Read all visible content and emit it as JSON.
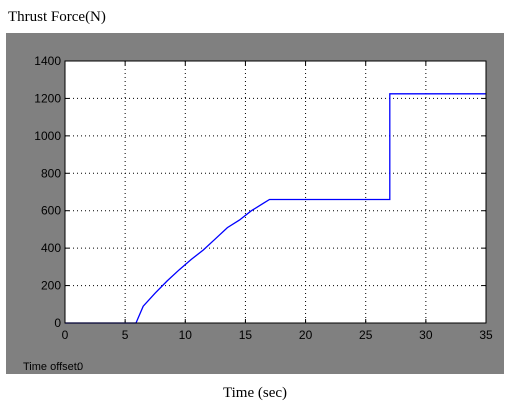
{
  "window": {
    "title": "Thrust Force(N)",
    "time_offset_label": "Time offset:",
    "time_offset_value": "0"
  },
  "colors": {
    "panel_background": "#808080",
    "axes_background": "#ffffff",
    "line": "#0000ff",
    "grid": "#000000"
  },
  "chart_data": {
    "type": "line",
    "title": "Thrust Force(N)",
    "xlabel": "Time (sec)",
    "ylabel": "",
    "xlim": [
      0,
      35
    ],
    "ylim": [
      0,
      1400
    ],
    "xticks": [
      0,
      5,
      10,
      15,
      20,
      25,
      30,
      35
    ],
    "yticks": [
      0,
      200,
      400,
      600,
      800,
      1000,
      1200,
      1400
    ],
    "grid": true,
    "grid_style": "dotted",
    "series": [
      {
        "x": [
          0,
          5.9,
          6.5,
          7.5,
          8.5,
          9.5,
          10.5,
          11.5,
          12.5,
          13.5,
          14.5,
          15.5,
          16.5,
          17.0,
          27.0,
          27.0,
          35.0
        ],
        "y": [
          0,
          0,
          90,
          160,
          225,
          285,
          340,
          390,
          450,
          510,
          550,
          600,
          640,
          660,
          660,
          1225,
          1225
        ]
      }
    ]
  }
}
